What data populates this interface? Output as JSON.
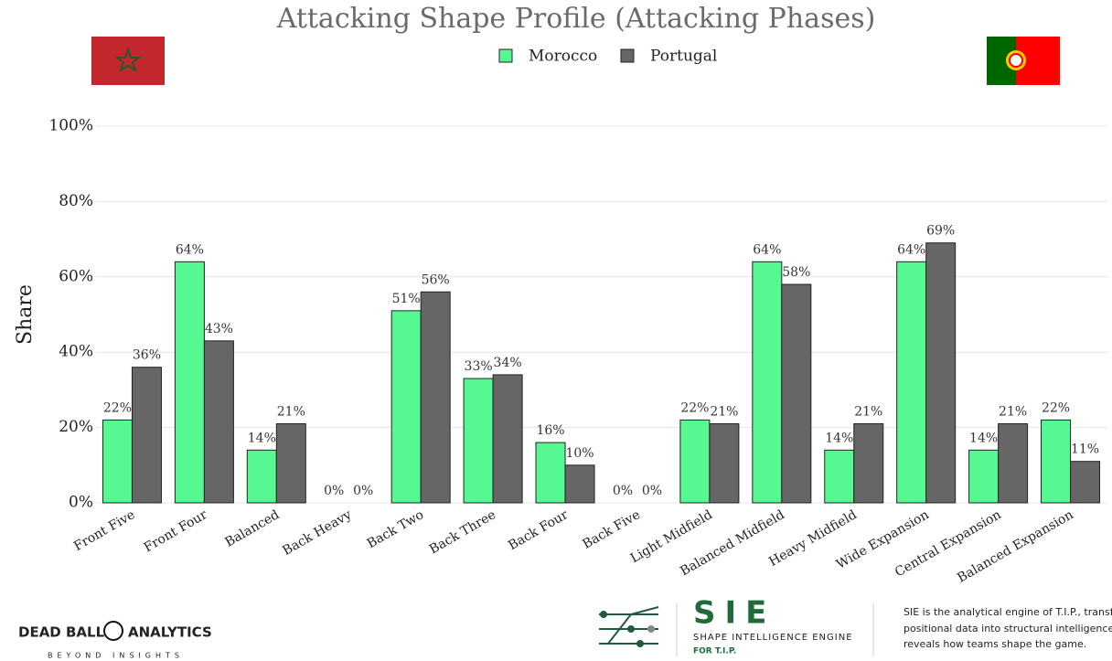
{
  "chart_data": {
    "type": "bar",
    "title": "Attacking Shape Profile (Attacking Phases)",
    "y_label": "Share",
    "categories": [
      "Front Five",
      "Front Four",
      "Balanced",
      "Back Heavy",
      "Back Two",
      "Back Three",
      "Back Four",
      "Back Five",
      "Light Midfield",
      "Balanced Midfield",
      "Heavy Midfield",
      "Wide Expansion",
      "Central Expansion",
      "Balanced Expansion"
    ],
    "series": [
      {
        "name": "Morocco",
        "color": "#56f891",
        "values": [
          22,
          64,
          14,
          0,
          51,
          33,
          16,
          0,
          22,
          64,
          14,
          64,
          14,
          22
        ],
        "value_labels": [
          "22%",
          "64%",
          "14%",
          "0%",
          "51%",
          "33%",
          "16%",
          "0%",
          "22%",
          "64%",
          "14%",
          "64%",
          "14%",
          "22%"
        ]
      },
      {
        "name": "Portugal",
        "color": "#666666",
        "values": [
          36,
          43,
          21,
          0,
          56,
          34,
          10,
          0,
          21,
          58,
          21,
          69,
          21,
          11
        ],
        "value_labels": [
          "36%",
          "43%",
          "21%",
          "0%",
          "56%",
          "34%",
          "10%",
          "0%",
          "21%",
          "58%",
          "21%",
          "69%",
          "21%",
          "11%"
        ]
      }
    ],
    "ylim": [
      0,
      100
    ],
    "yticks": [
      {
        "value": 0,
        "label": "0%"
      },
      {
        "value": 20,
        "label": "20%"
      },
      {
        "value": 40,
        "label": "40%"
      },
      {
        "value": 60,
        "label": "60%"
      },
      {
        "value": 80,
        "label": "80%"
      },
      {
        "value": 100,
        "label": "100%"
      }
    ],
    "grid": true,
    "legend": "top"
  },
  "footer": {
    "brand": "DEAD BALL",
    "brand2": "ANALYTICS",
    "tagline": "BEYOND INSIGHTS",
    "sie": "SIE",
    "sie_name": "SHAPE INTELLIGENCE ENGINE",
    "sie_for": "FOR T.I.P.",
    "description": [
      "SIE is the analytical engine of T.I.P., transforming",
      "positional data into structural intelligence that",
      "reveals how teams shape the game."
    ]
  }
}
